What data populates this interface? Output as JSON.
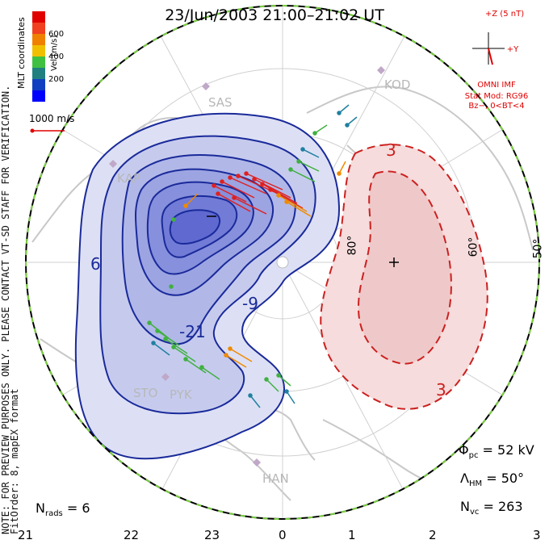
{
  "title": "23/Jun/2003 21:00–21:02 UT",
  "side_note_line1": "NOTE: FOR PREVIEW PURPOSES ONLY. PLEASE CONTACT VT-SD STAFF FOR VERIFICATION.",
  "side_note_line2": "FitOrder: 8, mapEX format",
  "coord_label": "MLT coordinates",
  "colorbar": {
    "label": "Vel [m/s]",
    "ticks": [
      "600",
      "400",
      "200"
    ],
    "colors": [
      "#e00000",
      "#f04020",
      "#f08000",
      "#f0c000",
      "#40c040",
      "#208080",
      "#1040c0",
      "#0000ff"
    ]
  },
  "reference_vector": "1000 m/s",
  "imf": {
    "z_label": "+Z (5 nT)",
    "y_label": "+Y",
    "source": "OMNI IMF",
    "model": "Stat Mod: RG96",
    "condition": "Bz−, 0<BT<4"
  },
  "stats": {
    "phi_pc": "52 kV",
    "lambda_hm": "50°",
    "n_vc": "263",
    "n_rads": "6"
  },
  "mlt_ticks": [
    "21",
    "22",
    "23",
    "0",
    "1",
    "2",
    "3"
  ],
  "latitude_labels": [
    "80°",
    "60°",
    "50°"
  ],
  "radars": [
    "SAS",
    "KAP",
    "KOD",
    "STO",
    "PYK",
    "HAN"
  ],
  "contours": {
    "negative_labels": [
      "6",
      "-21",
      "-9"
    ],
    "positive_labels": [
      "3",
      "3"
    ],
    "min_marker": "−",
    "max_marker": "+"
  }
}
